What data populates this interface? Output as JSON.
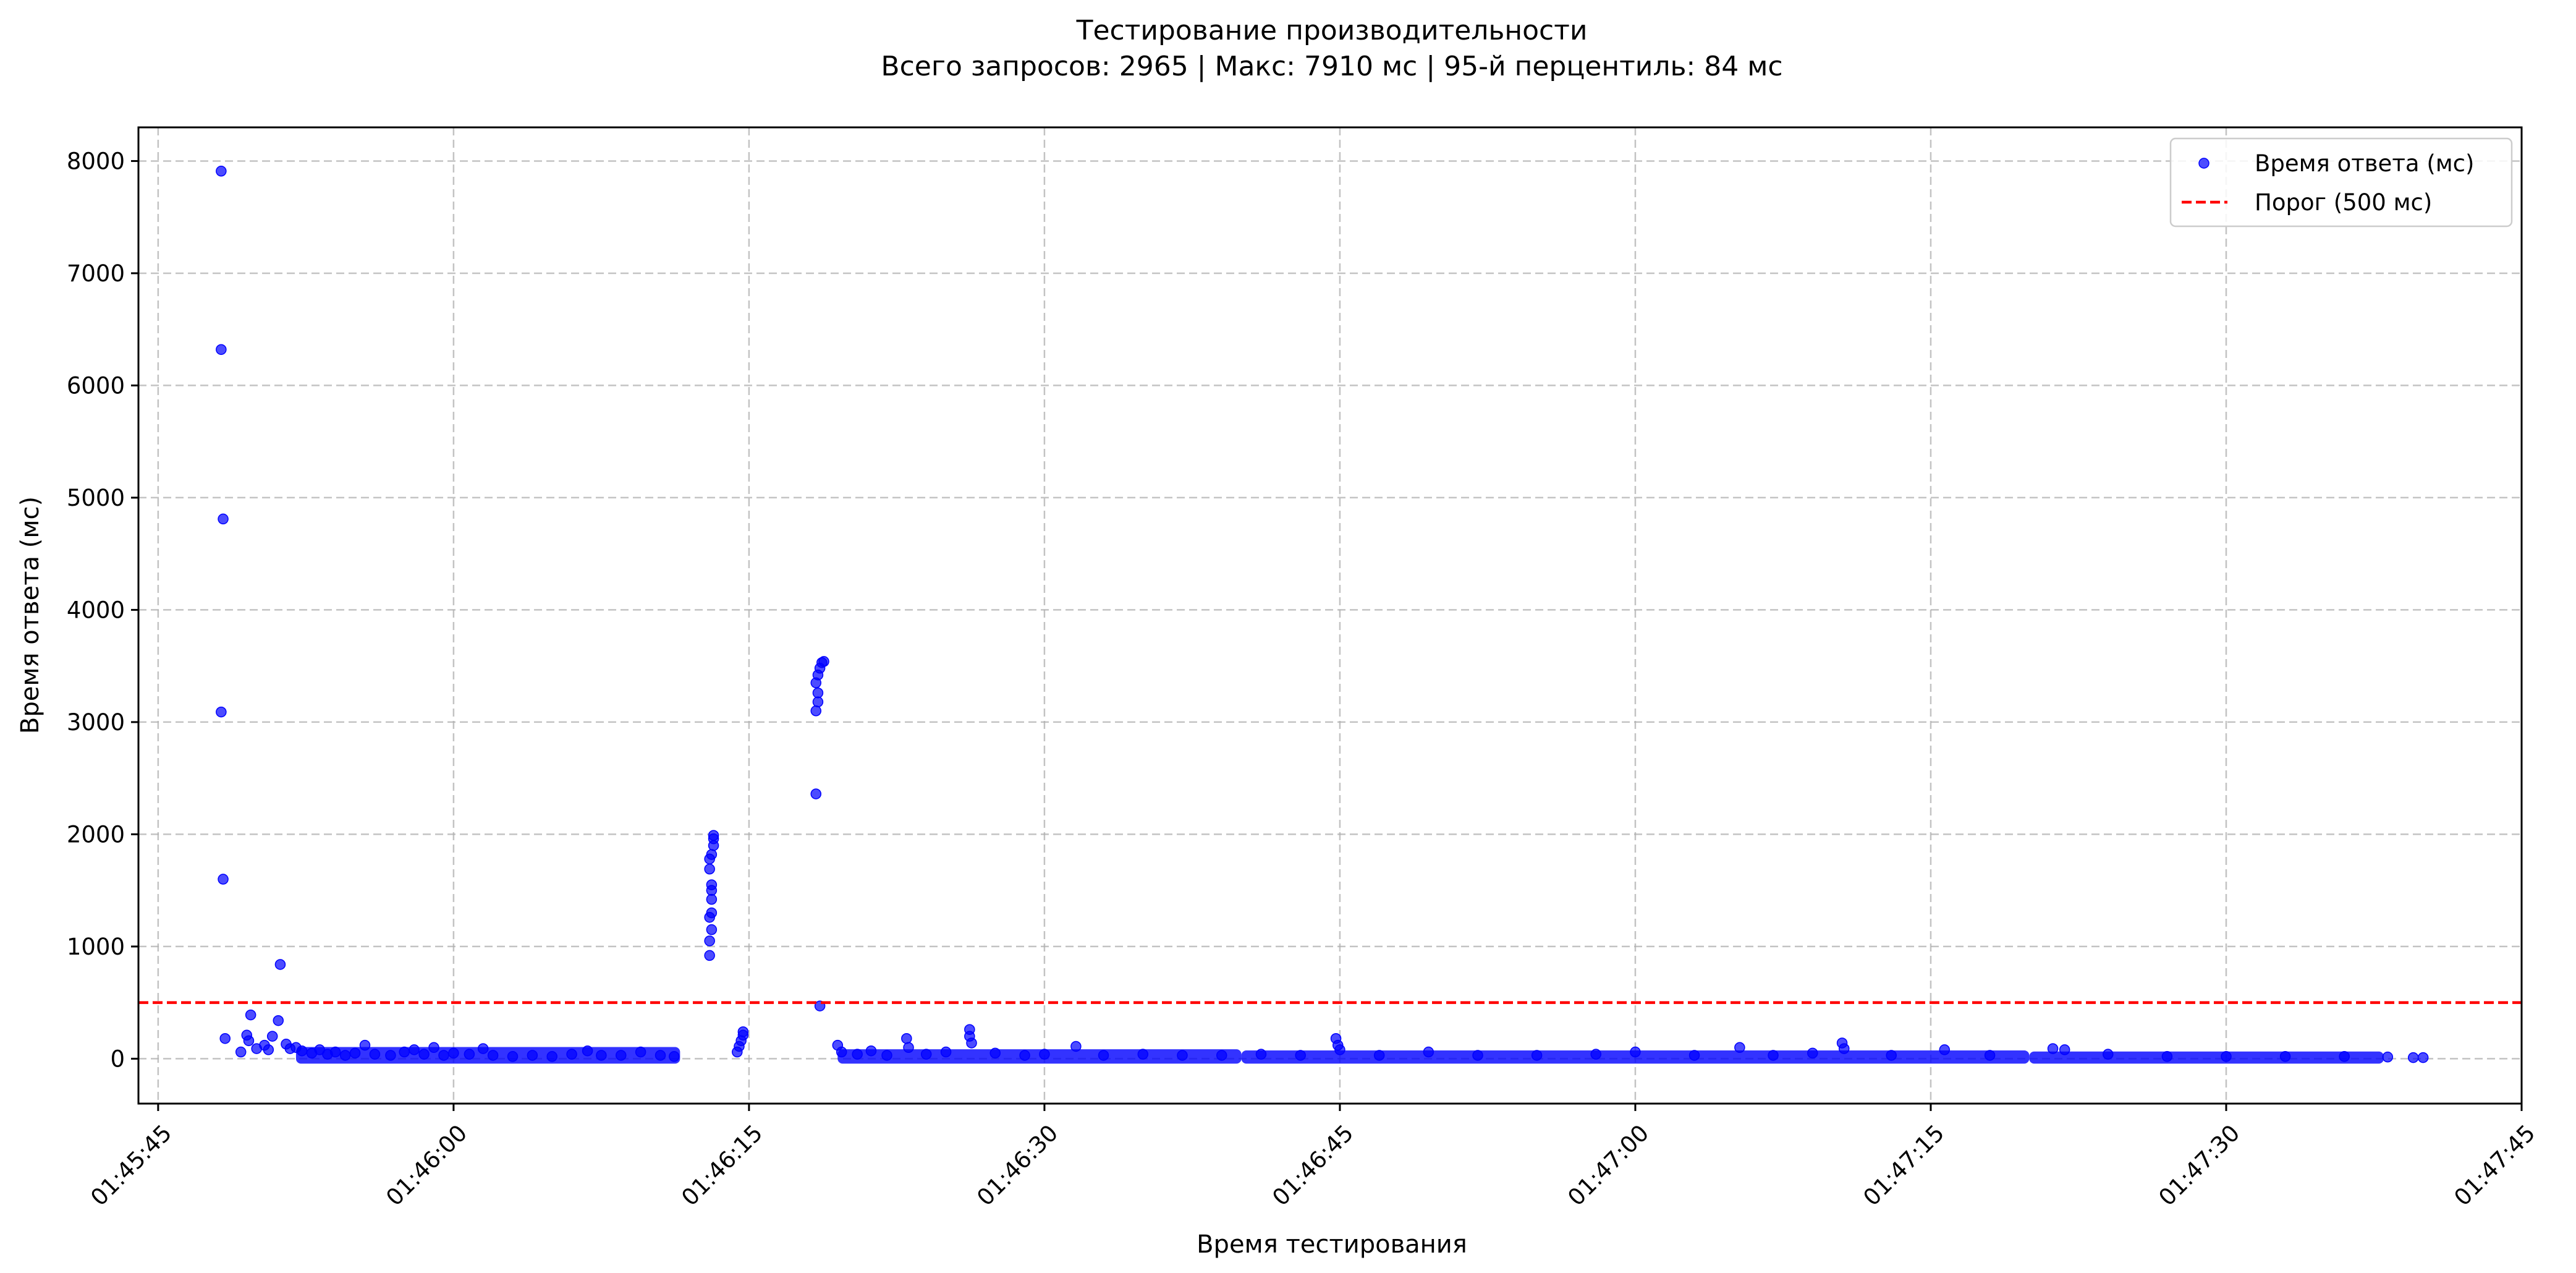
{
  "chart_data": {
    "type": "scatter",
    "title": "Тестирование производительности",
    "subtitle": "Всего запросов: 2965 | Макс: 7910 мс | 95-й перцентиль: 84 мс",
    "xlabel": "Время тестирования",
    "ylabel": "Время ответа (мс)",
    "x_range": [
      "01:45:44",
      "01:47:45"
    ],
    "ylim": [
      -400,
      8300
    ],
    "x_ticks": [
      "01:45:45",
      "01:46:00",
      "01:46:15",
      "01:46:30",
      "01:46:45",
      "01:47:00",
      "01:47:15",
      "01:47:30",
      "01:47:45"
    ],
    "y_ticks": [
      0,
      1000,
      2000,
      3000,
      4000,
      5000,
      6000,
      7000,
      8000
    ],
    "grid": true,
    "legend_position": "top-right",
    "threshold": {
      "name": "Порог (500 мс)",
      "value": 500,
      "color": "#ff0000",
      "style": "dashed"
    },
    "series": [
      {
        "name": "Время ответа (мс)",
        "color": "#0000ff",
        "points": [
          [
            "01:45:48.2",
            7910
          ],
          [
            "01:45:48.2",
            6320
          ],
          [
            "01:45:48.3",
            4810
          ],
          [
            "01:45:48.2",
            3090
          ],
          [
            "01:45:48.3",
            1600
          ],
          [
            "01:45:48.4",
            180
          ],
          [
            "01:45:49.2",
            60
          ],
          [
            "01:45:49.5",
            210
          ],
          [
            "01:45:49.6",
            160
          ],
          [
            "01:45:49.7",
            390
          ],
          [
            "01:45:50.0",
            90
          ],
          [
            "01:45:50.4",
            120
          ],
          [
            "01:45:50.6",
            80
          ],
          [
            "01:45:50.8",
            200
          ],
          [
            "01:45:51.1",
            340
          ],
          [
            "01:45:51.2",
            840
          ],
          [
            "01:45:51.5",
            130
          ],
          [
            "01:45:51.7",
            90
          ],
          [
            "01:45:52.0",
            100
          ],
          [
            "01:45:52.3",
            70
          ],
          [
            "01:45:52.8",
            50
          ],
          [
            "01:45:53.2",
            80
          ],
          [
            "01:45:53.6",
            40
          ],
          [
            "01:45:54.0",
            60
          ],
          [
            "01:45:54.5",
            30
          ],
          [
            "01:45:55.0",
            50
          ],
          [
            "01:45:55.5",
            120
          ],
          [
            "01:45:56.0",
            40
          ],
          [
            "01:45:56.8",
            30
          ],
          [
            "01:45:57.5",
            60
          ],
          [
            "01:45:58.0",
            80
          ],
          [
            "01:45:58.5",
            40
          ],
          [
            "01:45:59.0",
            100
          ],
          [
            "01:45:59.5",
            30
          ],
          [
            "01:46:00.0",
            50
          ],
          [
            "01:46:00.8",
            40
          ],
          [
            "01:46:01.5",
            90
          ],
          [
            "01:46:02.0",
            30
          ],
          [
            "01:46:03.0",
            20
          ],
          [
            "01:46:04.0",
            30
          ],
          [
            "01:46:05.0",
            20
          ],
          [
            "01:46:06.0",
            40
          ],
          [
            "01:46:06.8",
            70
          ],
          [
            "01:46:07.5",
            30
          ],
          [
            "01:46:08.5",
            30
          ],
          [
            "01:46:09.5",
            60
          ],
          [
            "01:46:10.5",
            30
          ],
          [
            "01:46:11.2",
            20
          ],
          [
            "01:46:13.0",
            920
          ],
          [
            "01:46:13.0",
            1050
          ],
          [
            "01:46:13.1",
            1150
          ],
          [
            "01:46:13.0",
            1260
          ],
          [
            "01:46:13.1",
            1300
          ],
          [
            "01:46:13.1",
            1420
          ],
          [
            "01:46:13.1",
            1500
          ],
          [
            "01:46:13.1",
            1550
          ],
          [
            "01:46:13.0",
            1690
          ],
          [
            "01:46:13.0",
            1780
          ],
          [
            "01:46:13.1",
            1820
          ],
          [
            "01:46:13.2",
            1900
          ],
          [
            "01:46:13.2",
            1960
          ],
          [
            "01:46:13.2",
            1990
          ],
          [
            "01:46:14.4",
            60
          ],
          [
            "01:46:14.5",
            110
          ],
          [
            "01:46:14.6",
            160
          ],
          [
            "01:46:14.7",
            210
          ],
          [
            "01:46:14.7",
            240
          ],
          [
            "01:46:18.6",
            470
          ],
          [
            "01:46:18.4",
            2360
          ],
          [
            "01:46:18.4",
            3100
          ],
          [
            "01:46:18.5",
            3180
          ],
          [
            "01:46:18.5",
            3260
          ],
          [
            "01:46:18.4",
            3350
          ],
          [
            "01:46:18.5",
            3420
          ],
          [
            "01:46:18.6",
            3480
          ],
          [
            "01:46:18.7",
            3530
          ],
          [
            "01:46:18.8",
            3540
          ],
          [
            "01:46:19.5",
            120
          ],
          [
            "01:46:19.7",
            60
          ],
          [
            "01:46:20.5",
            40
          ],
          [
            "01:46:21.2",
            70
          ],
          [
            "01:46:22.0",
            30
          ],
          [
            "01:46:23.0",
            180
          ],
          [
            "01:46:23.1",
            100
          ],
          [
            "01:46:24.0",
            40
          ],
          [
            "01:46:25.0",
            60
          ],
          [
            "01:46:26.2",
            260
          ],
          [
            "01:46:26.2",
            200
          ],
          [
            "01:46:26.3",
            140
          ],
          [
            "01:46:27.5",
            50
          ],
          [
            "01:46:29.0",
            30
          ],
          [
            "01:46:30.0",
            40
          ],
          [
            "01:46:31.6",
            110
          ],
          [
            "01:46:33.0",
            30
          ],
          [
            "01:46:35.0",
            40
          ],
          [
            "01:46:37.0",
            30
          ],
          [
            "01:46:39.0",
            30
          ],
          [
            "01:46:41.0",
            40
          ],
          [
            "01:46:43.0",
            30
          ],
          [
            "01:46:44.8",
            180
          ],
          [
            "01:46:44.9",
            120
          ],
          [
            "01:46:45.0",
            80
          ],
          [
            "01:46:47.0",
            30
          ],
          [
            "01:46:49.5",
            60
          ],
          [
            "01:46:52.0",
            30
          ],
          [
            "01:46:55.0",
            30
          ],
          [
            "01:46:58.0",
            40
          ],
          [
            "01:47:00.0",
            60
          ],
          [
            "01:47:03.0",
            30
          ],
          [
            "01:47:05.3",
            100
          ],
          [
            "01:47:07.0",
            30
          ],
          [
            "01:47:09.0",
            50
          ],
          [
            "01:47:10.5",
            140
          ],
          [
            "01:47:10.6",
            90
          ],
          [
            "01:47:13.0",
            30
          ],
          [
            "01:47:15.7",
            80
          ],
          [
            "01:47:18.0",
            30
          ],
          [
            "01:47:21.2",
            90
          ],
          [
            "01:47:21.8",
            80
          ],
          [
            "01:47:24.0",
            40
          ],
          [
            "01:47:27.0",
            20
          ],
          [
            "01:47:30.0",
            20
          ],
          [
            "01:47:33.0",
            20
          ],
          [
            "01:47:36.0",
            20
          ],
          [
            "01:47:38.2",
            15
          ],
          [
            "01:47:39.5",
            10
          ],
          [
            "01:47:40.0",
            10
          ]
        ],
        "bands": [
          {
            "from": "01:45:52",
            "to": "01:46:11.5",
            "min": 0,
            "max": 60
          },
          {
            "from": "01:46:19.5",
            "to": "01:46:40",
            "min": 0,
            "max": 40
          },
          {
            "from": "01:46:40",
            "to": "01:47:20",
            "min": 0,
            "max": 30
          },
          {
            "from": "01:47:20",
            "to": "01:47:38",
            "min": 0,
            "max": 20
          }
        ]
      }
    ]
  }
}
